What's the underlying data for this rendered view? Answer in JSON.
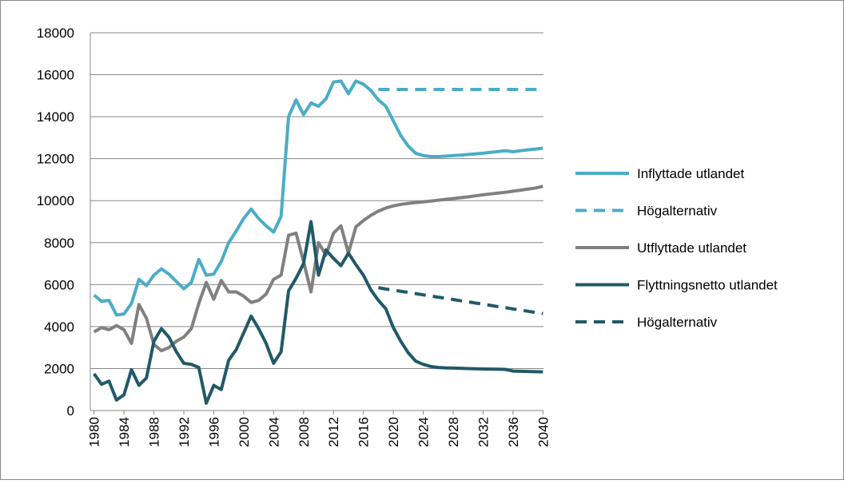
{
  "chart_data": {
    "type": "line",
    "x": [
      1980,
      1981,
      1982,
      1983,
      1984,
      1985,
      1986,
      1987,
      1988,
      1989,
      1990,
      1991,
      1992,
      1993,
      1994,
      1995,
      1996,
      1997,
      1998,
      1999,
      2000,
      2001,
      2002,
      2003,
      2004,
      2005,
      2006,
      2007,
      2008,
      2009,
      2010,
      2011,
      2012,
      2013,
      2014,
      2015,
      2016,
      2017,
      2018,
      2019,
      2020,
      2021,
      2022,
      2023,
      2024,
      2025,
      2026,
      2027,
      2028,
      2029,
      2030,
      2031,
      2032,
      2033,
      2034,
      2035,
      2036,
      2037,
      2038,
      2039,
      2040
    ],
    "series": [
      {
        "name": "Inflyttade utlandet",
        "color": "#4bacc6",
        "dashed": false,
        "values": [
          5500,
          5200,
          5250,
          4550,
          4600,
          5100,
          6250,
          5950,
          6450,
          6750,
          6500,
          6150,
          5800,
          6100,
          7200,
          6450,
          6500,
          7100,
          8000,
          8550,
          9150,
          9600,
          9150,
          8800,
          8500,
          9250,
          14000,
          14800,
          14100,
          14650,
          14500,
          14850,
          15650,
          15700,
          15100,
          15700,
          15550,
          15250,
          14800,
          14500,
          13800,
          13100,
          12600,
          12250,
          12150,
          12100,
          12100,
          12120,
          12150,
          12170,
          12200,
          12230,
          12260,
          12300,
          12340,
          12380,
          12330,
          12380,
          12420,
          12460,
          12500
        ]
      },
      {
        "name": "Högalternativ",
        "color": "#4bacc6",
        "dashed": true,
        "values": [
          null,
          null,
          null,
          null,
          null,
          null,
          null,
          null,
          null,
          null,
          null,
          null,
          null,
          null,
          null,
          null,
          null,
          null,
          null,
          null,
          null,
          null,
          null,
          null,
          null,
          null,
          null,
          null,
          null,
          null,
          null,
          null,
          null,
          null,
          null,
          null,
          null,
          null,
          15300,
          15300,
          15300,
          15300,
          15300,
          15300,
          15300,
          15300,
          15300,
          15300,
          15300,
          15300,
          15300,
          15300,
          15300,
          15300,
          15300,
          15300,
          15300,
          15300,
          15300,
          15300,
          15300
        ]
      },
      {
        "name": "Utflyttade utlandet",
        "color": "#808080",
        "dashed": false,
        "values": [
          3750,
          3950,
          3850,
          4050,
          3850,
          3200,
          5050,
          4400,
          3150,
          2850,
          3000,
          3300,
          3500,
          3900,
          5100,
          6100,
          5300,
          6200,
          5650,
          5650,
          5450,
          5150,
          5250,
          5550,
          6250,
          6450,
          8350,
          8450,
          7100,
          5650,
          8000,
          7400,
          8450,
          8800,
          7500,
          8750,
          9050,
          9300,
          9500,
          9650,
          9750,
          9820,
          9870,
          9910,
          9940,
          9980,
          10020,
          10060,
          10100,
          10140,
          10180,
          10230,
          10280,
          10320,
          10360,
          10400,
          10450,
          10500,
          10550,
          10600,
          10680
        ]
      },
      {
        "name": "Flyttningsnetto utlandet",
        "color": "#215968",
        "dashed": false,
        "values": [
          1750,
          1250,
          1400,
          500,
          750,
          1950,
          1200,
          1550,
          3300,
          3900,
          3500,
          2800,
          2250,
          2200,
          2050,
          350,
          1200,
          1000,
          2400,
          2900,
          3700,
          4500,
          3900,
          3200,
          2250,
          2800,
          5700,
          6300,
          7000,
          9000,
          6450,
          7650,
          7250,
          6900,
          7500,
          6950,
          6450,
          5750,
          5250,
          4850,
          3950,
          3300,
          2750,
          2350,
          2200,
          2100,
          2050,
          2030,
          2020,
          2010,
          2000,
          1990,
          1980,
          1975,
          1970,
          1960,
          1880,
          1870,
          1860,
          1850,
          1840
        ]
      },
      {
        "name": "Högalternativ",
        "color": "#215968",
        "dashed": true,
        "values": [
          null,
          null,
          null,
          null,
          null,
          null,
          null,
          null,
          null,
          null,
          null,
          null,
          null,
          null,
          null,
          null,
          null,
          null,
          null,
          null,
          null,
          null,
          null,
          null,
          null,
          null,
          null,
          null,
          null,
          null,
          null,
          null,
          null,
          null,
          null,
          null,
          null,
          null,
          5850,
          5790,
          5740,
          5680,
          5630,
          5570,
          5510,
          5460,
          5400,
          5350,
          5290,
          5230,
          5180,
          5120,
          5070,
          5010,
          4950,
          4900,
          4840,
          4790,
          4730,
          4670,
          4620
        ]
      }
    ],
    "xlim": [
      1979.5,
      2040.5
    ],
    "xticks": [
      1980,
      1984,
      1988,
      1992,
      1996,
      2000,
      2004,
      2008,
      2012,
      2016,
      2020,
      2024,
      2028,
      2032,
      2036,
      2040
    ],
    "ylim": [
      0,
      18000
    ],
    "yticks": [
      0,
      2000,
      4000,
      6000,
      8000,
      10000,
      12000,
      14000,
      16000,
      18000
    ],
    "grid": true,
    "legend": "right"
  }
}
